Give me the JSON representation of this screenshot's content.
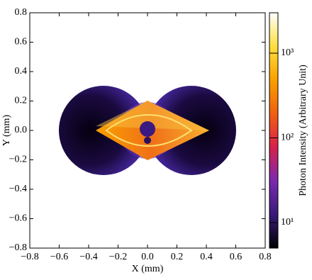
{
  "chart_data": {
    "type": "heatmap",
    "xlabel": "X (mm)",
    "ylabel": "Y (mm)",
    "colorbar_label": "Photon Intensity (Arbitrary Unit)",
    "xlim": [
      -0.8,
      0.8
    ],
    "ylim": [
      -0.8,
      0.8
    ],
    "xticks": [
      {
        "value": -0.8,
        "label": "−0.8"
      },
      {
        "value": -0.6,
        "label": "−0.6"
      },
      {
        "value": -0.4,
        "label": "−0.4"
      },
      {
        "value": -0.2,
        "label": "−0.2"
      },
      {
        "value": 0,
        "label": "0.0"
      },
      0.2,
      0.4,
      0.6,
      0.8
    ],
    "yticks": [
      {
        "value": -0.8,
        "label": "−0.8"
      },
      {
        "value": -0.6,
        "label": "−0.6"
      },
      {
        "value": -0.4,
        "label": "−0.4"
      },
      {
        "value": -0.2,
        "label": "−0.2"
      },
      {
        "value": 0,
        "label": "0.0"
      },
      0.2,
      0.4,
      0.6,
      0.8
    ],
    "colorbar_lim": [
      5,
      3000
    ],
    "colorbar_log": true,
    "colorbar_ticks": [
      {
        "value": 10,
        "label": "10¹"
      },
      {
        "value": 100,
        "label": "10²"
      },
      {
        "value": 1000,
        "label": "10³"
      }
    ],
    "colormap": [
      "#000000",
      "#3a1a7a",
      "#7a2ab0",
      "#d8204a",
      "#f06010",
      "#f8a000",
      "#ffe040",
      "#ffffff"
    ]
  }
}
